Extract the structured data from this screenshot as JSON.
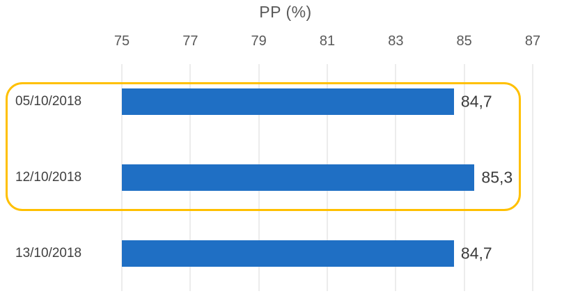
{
  "chart_data": {
    "type": "bar",
    "orientation": "horizontal",
    "title": "PP (%)",
    "categories": [
      "05/10/2018",
      "12/10/2018",
      "13/10/2018"
    ],
    "values": [
      84.7,
      85.3,
      84.7
    ],
    "value_labels": [
      "84,7",
      "85,3",
      "84,7"
    ],
    "xlim": [
      75,
      87
    ],
    "x_ticks": [
      75,
      77,
      79,
      81,
      83,
      85,
      87
    ],
    "xlabel": "",
    "ylabel": "",
    "grid": "vertical",
    "legend": "none",
    "bar_color": "#1f6fc4",
    "gridline_color": "#d9d9d9",
    "highlight": {
      "description": "rounded rectangle annotation around first two bars",
      "rows": [
        0,
        1
      ],
      "color": "#ffc000"
    }
  }
}
